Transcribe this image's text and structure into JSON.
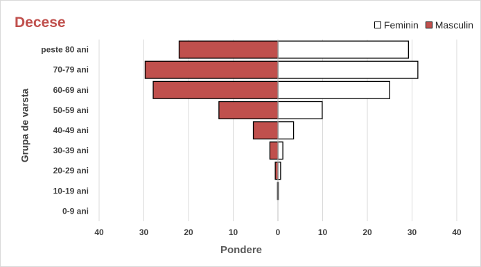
{
  "chart_data": {
    "type": "bar",
    "orientation": "horizontal-pyramid",
    "title": "Decese",
    "xlabel": "Pondere",
    "ylabel": "Grupa de varsta",
    "categories": [
      "peste 80 ani",
      "70-79 ani",
      "60-69 ani",
      "50-59 ani",
      "40-49 ani",
      "30-39 ani",
      "20-29 ani",
      "10-19 ani",
      "0-9 ani"
    ],
    "series": [
      {
        "name": "Feminin",
        "side": "right",
        "color": "#ffffff",
        "values": [
          29.2,
          31.3,
          25.0,
          9.9,
          3.5,
          1.1,
          0.6,
          0.1,
          0.0
        ]
      },
      {
        "name": "Masculin",
        "side": "left",
        "color": "#c0504d",
        "values": [
          22.1,
          29.7,
          27.9,
          13.2,
          5.5,
          1.8,
          0.6,
          0.1,
          0.0
        ]
      }
    ],
    "xlim": [
      -40,
      40
    ],
    "xticks": [
      -40,
      -30,
      -20,
      -10,
      0,
      10,
      20,
      30,
      40
    ],
    "xtick_labels": [
      "40",
      "30",
      "20",
      "10",
      "0",
      "10",
      "20",
      "30",
      "40"
    ],
    "grid": "vertical",
    "legend_position": "top-right"
  }
}
